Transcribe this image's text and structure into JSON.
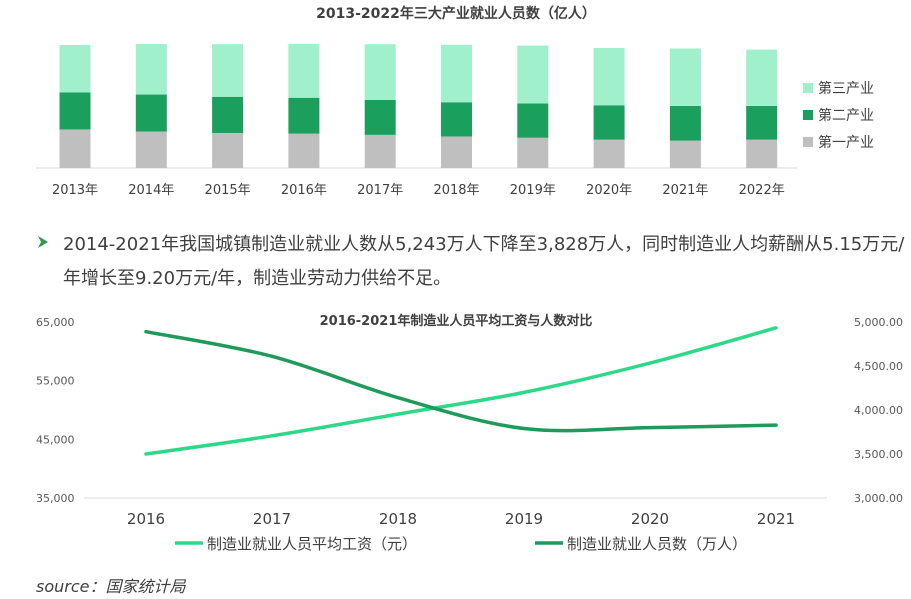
{
  "chart_data": [
    {
      "type": "bar",
      "stacked": true,
      "title": "2013-2022年三大产业就业人员数（亿人）",
      "categories": [
        "2013年",
        "2014年",
        "2015年",
        "2016年",
        "2017年",
        "2018年",
        "2019年",
        "2020年",
        "2021年",
        "2022年"
      ],
      "series": [
        {
          "name": "第一产业",
          "color": "#bfbfbf",
          "values": [
            2.41,
            2.28,
            2.19,
            2.15,
            2.07,
            1.97,
            1.89,
            1.77,
            1.71,
            1.77
          ]
        },
        {
          "name": "第二产业",
          "color": "#1aa05c",
          "values": [
            2.31,
            2.31,
            2.26,
            2.24,
            2.18,
            2.14,
            2.14,
            2.15,
            2.17,
            2.11
          ]
        },
        {
          "name": "第三产业",
          "color": "#a0f0cc",
          "values": [
            2.97,
            3.16,
            3.29,
            3.37,
            3.49,
            3.59,
            3.62,
            3.58,
            3.59,
            3.52
          ]
        }
      ],
      "legend_order": [
        "第三产业",
        "第二产业",
        "第一产业"
      ],
      "legend": "right",
      "ylim": [
        0,
        8
      ]
    },
    {
      "type": "line",
      "title": "2016-2021年制造业人员平均工资与人数对比",
      "x": [
        "2016",
        "2017",
        "2018",
        "2019",
        "2020",
        "2021"
      ],
      "yleft": {
        "ylim": [
          35000,
          65000
        ],
        "ticks": [
          "35,000",
          "45,000",
          "55,000",
          "65,000"
        ]
      },
      "yright": {
        "ylim": [
          3000,
          5000
        ],
        "ticks": [
          "3,000.00",
          "3,500.00",
          "4,000.00",
          "4,500.00",
          "5,000.00"
        ]
      },
      "series": [
        {
          "name": "制造业就业人员平均工资（元）",
          "axis": "left",
          "color": "#2ed889",
          "values": [
            42500,
            45600,
            49300,
            53000,
            58000,
            64000
          ]
        },
        {
          "name": "制造业就业人员数（万人）",
          "axis": "right",
          "color": "#1f9a5a",
          "values": [
            4890,
            4610,
            4140,
            3790,
            3800,
            3828
          ]
        }
      ],
      "legend": "bottom"
    }
  ],
  "bullet": {
    "text": "2014-2021年我国城镇制造业就业人数从5,243万人下降至3,828万人，同时制造业人均薪酬从5.15万元/年增长至9.20万元/年，制造业劳动力供给不足。"
  },
  "source": "source：国家统计局",
  "colors": {
    "accent": "#1aa05c",
    "arrow": "#2e9a4a"
  }
}
